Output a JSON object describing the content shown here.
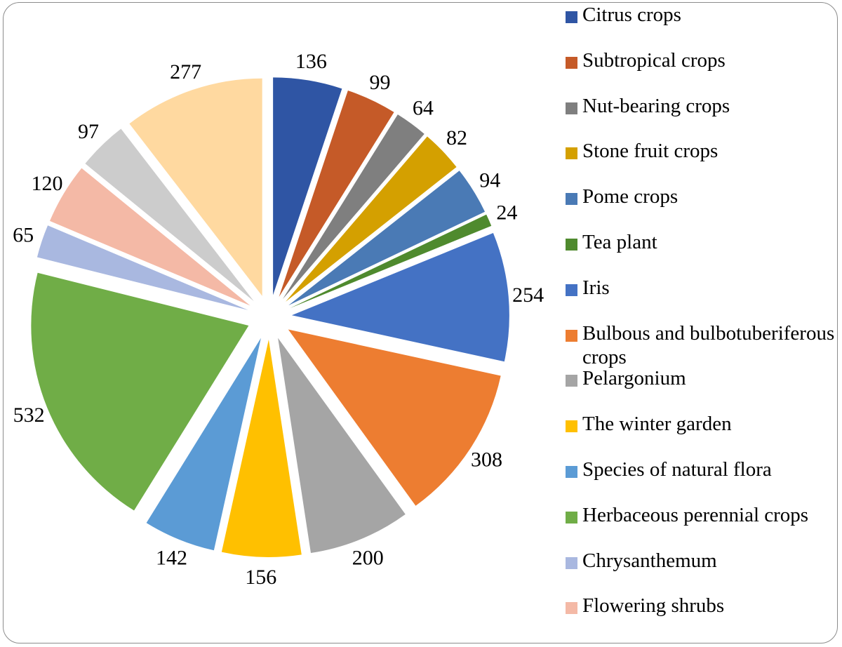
{
  "chart_data": {
    "type": "pie",
    "title": "",
    "exploded": true,
    "labels": [
      "Citrus crops",
      "Subtropical crops",
      "Nut-bearing crops",
      "Stone fruit crops",
      "Pome crops",
      "Tea plant",
      "Iris",
      "Bulbous and bulbotuberiferous crops",
      "Pelargonium",
      "The winter garden",
      "Species of natural flora",
      "Herbaceous perennial crops",
      "Chrysanthemum",
      "Flowering shrubs",
      "",
      ""
    ],
    "values": [
      136,
      99,
      64,
      82,
      94,
      24,
      254,
      308,
      200,
      156,
      142,
      532,
      65,
      120,
      97,
      277
    ],
    "colors": [
      "#2f55a4",
      "#c55a28",
      "#7f7f7f",
      "#d4a000",
      "#4a7ab5",
      "#4f8a2e",
      "#4472c4",
      "#ed7d31",
      "#a5a5a5",
      "#ffc000",
      "#5b9bd5",
      "#70ad47",
      "#a9b8e0",
      "#f4b9a6",
      "#cccccc",
      "#ffd9a0"
    ],
    "legend_position": "right",
    "legend_entries": [
      "Citrus crops",
      "Subtropical crops",
      "Nut-bearing crops",
      "Stone fruit crops",
      "Pome crops",
      "Tea plant",
      "Iris",
      "Bulbous and bulbotuberiferous crops",
      "Pelargonium",
      "The winter garden",
      "Species of natural flora",
      "Herbaceous perennial crops",
      "Chrysanthemum",
      "Flowering shrubs"
    ]
  }
}
